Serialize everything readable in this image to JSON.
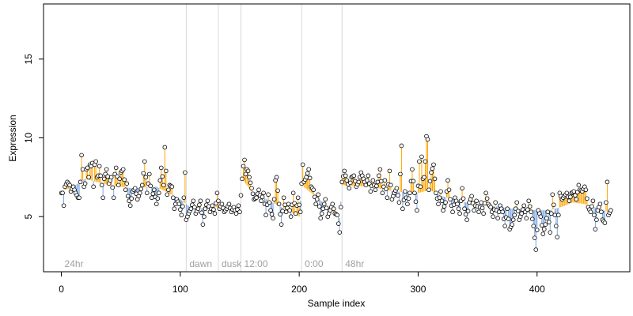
{
  "chart_data": {
    "type": "scatter",
    "style": "lollipop-from-smoothed-trend",
    "xlabel": "Sample index",
    "ylabel": "Expression",
    "xlim": [
      -15,
      478
    ],
    "ylim": [
      1.5,
      18.5
    ],
    "x_ticks": [
      0,
      100,
      200,
      300,
      400
    ],
    "y_ticks": [
      5,
      10,
      15
    ],
    "grid": false,
    "colors": {
      "above_trend": "#ffa500",
      "below_trend": "#7aa5e0",
      "point_fill": "#ffffff",
      "point_stroke": "#000000",
      "phase_line": "#d8d8d8",
      "phase_label": "#a0a0a0"
    },
    "phase_markers": [
      {
        "label": "24hr",
        "x": 0,
        "line": false
      },
      {
        "label": "dawn",
        "x": 105,
        "line": true
      },
      {
        "label": "dusk",
        "x": 132,
        "line": true
      },
      {
        "label": "12:00",
        "x": 151,
        "line": true
      },
      {
        "label": "0:00",
        "x": 202,
        "line": true
      },
      {
        "label": "48hr",
        "x": 236,
        "line": true
      }
    ],
    "trend_knots": [
      [
        0,
        6.6
      ],
      [
        10,
        6.9
      ],
      [
        20,
        7.4
      ],
      [
        40,
        7.0
      ],
      [
        60,
        6.8
      ],
      [
        80,
        6.9
      ],
      [
        100,
        6.1
      ],
      [
        110,
        5.5
      ],
      [
        130,
        5.6
      ],
      [
        150,
        5.4
      ],
      [
        152,
        7.4
      ],
      [
        160,
        6.6
      ],
      [
        180,
        5.8
      ],
      [
        200,
        5.0
      ],
      [
        202,
        7.0
      ],
      [
        220,
        5.9
      ],
      [
        234,
        4.9
      ],
      [
        236,
        7.0
      ],
      [
        260,
        6.9
      ],
      [
        280,
        6.6
      ],
      [
        300,
        6.5
      ],
      [
        310,
        6.7
      ],
      [
        320,
        6.3
      ],
      [
        340,
        5.9
      ],
      [
        360,
        5.7
      ],
      [
        380,
        5.5
      ],
      [
        400,
        5.4
      ],
      [
        410,
        5.4
      ],
      [
        420,
        5.6
      ],
      [
        430,
        5.9
      ],
      [
        440,
        5.8
      ],
      [
        452,
        5.5
      ],
      [
        460,
        5.3
      ]
    ],
    "anchors": [
      [
        0,
        6.5
      ],
      [
        1,
        6.5
      ],
      [
        2,
        5.7
      ],
      [
        3,
        6.9
      ],
      [
        5,
        7.2
      ],
      [
        7,
        7.0
      ],
      [
        8,
        6.6
      ],
      [
        10,
        6.9
      ],
      [
        12,
        6.5
      ],
      [
        14,
        6.2
      ],
      [
        15,
        6.2
      ],
      [
        16,
        7.2
      ],
      [
        17,
        8.9
      ],
      [
        18,
        8.0
      ],
      [
        19,
        6.9
      ],
      [
        20,
        7.1
      ],
      [
        21,
        8.0
      ],
      [
        22,
        8.1
      ],
      [
        23,
        7.5
      ],
      [
        24,
        8.3
      ],
      [
        25,
        8.2
      ],
      [
        26,
        8.4
      ],
      [
        27,
        6.9
      ],
      [
        28,
        8.3
      ],
      [
        29,
        8.5
      ],
      [
        30,
        7.5
      ],
      [
        31,
        7.6
      ],
      [
        32,
        8.2
      ],
      [
        34,
        7.0
      ],
      [
        35,
        6.2
      ],
      [
        36,
        7.4
      ],
      [
        38,
        8.0
      ],
      [
        40,
        7.1
      ],
      [
        42,
        7.5
      ],
      [
        44,
        6.2
      ],
      [
        45,
        7.7
      ],
      [
        46,
        8.1
      ],
      [
        48,
        7.0
      ],
      [
        50,
        7.8
      ],
      [
        52,
        8.0
      ],
      [
        54,
        6.7
      ],
      [
        55,
        7.1
      ],
      [
        56,
        6.3
      ],
      [
        58,
        5.7
      ],
      [
        60,
        6.6
      ],
      [
        62,
        6.8
      ],
      [
        64,
        6.1
      ],
      [
        66,
        6.5
      ],
      [
        68,
        7.0
      ],
      [
        70,
        8.5
      ],
      [
        72,
        6.5
      ],
      [
        74,
        7.7
      ],
      [
        76,
        6.2
      ],
      [
        78,
        6.7
      ],
      [
        80,
        5.8
      ],
      [
        82,
        6.5
      ],
      [
        84,
        8.1
      ],
      [
        86,
        7.0
      ],
      [
        87,
        9.4
      ],
      [
        89,
        6.4
      ],
      [
        91,
        7.0
      ],
      [
        93,
        6.9
      ],
      [
        95,
        5.5
      ],
      [
        97,
        6.1
      ],
      [
        99,
        5.8
      ],
      [
        101,
        5.1
      ],
      [
        103,
        6.2
      ],
      [
        104,
        7.8
      ],
      [
        105,
        4.8
      ],
      [
        107,
        5.2
      ],
      [
        109,
        5.5
      ],
      [
        111,
        6.0
      ],
      [
        113,
        5.2
      ],
      [
        115,
        5.5
      ],
      [
        117,
        6.0
      ],
      [
        119,
        4.5
      ],
      [
        121,
        5.5
      ],
      [
        123,
        6.0
      ],
      [
        125,
        5.3
      ],
      [
        127,
        5.7
      ],
      [
        129,
        5.2
      ],
      [
        131,
        6.5
      ],
      [
        133,
        5.5
      ],
      [
        135,
        5.8
      ],
      [
        137,
        5.3
      ],
      [
        139,
        5.5
      ],
      [
        141,
        5.8
      ],
      [
        143,
        5.3
      ],
      [
        145,
        5.6
      ],
      [
        147,
        5.2
      ],
      [
        149,
        5.7
      ],
      [
        150,
        5.3
      ],
      [
        152,
        7.4
      ],
      [
        153,
        8.2
      ],
      [
        154,
        8.6
      ],
      [
        155,
        7.7
      ],
      [
        156,
        8.0
      ],
      [
        157,
        7.9
      ],
      [
        158,
        7.5
      ],
      [
        160,
        6.8
      ],
      [
        162,
        6.1
      ],
      [
        164,
        6.2
      ],
      [
        166,
        6.7
      ],
      [
        168,
        6.0
      ],
      [
        170,
        6.5
      ],
      [
        172,
        5.1
      ],
      [
        174,
        6.4
      ],
      [
        176,
        5.4
      ],
      [
        178,
        4.9
      ],
      [
        180,
        7.3
      ],
      [
        181,
        7.5
      ],
      [
        183,
        5.8
      ],
      [
        185,
        4.5
      ],
      [
        187,
        6.2
      ],
      [
        189,
        5.3
      ],
      [
        191,
        5.8
      ],
      [
        193,
        5.0
      ],
      [
        195,
        6.5
      ],
      [
        197,
        5.2
      ],
      [
        199,
        6.2
      ],
      [
        201,
        5.3
      ],
      [
        202,
        7.1
      ],
      [
        203,
        8.3
      ],
      [
        204,
        7.2
      ],
      [
        206,
        7.5
      ],
      [
        208,
        8.0
      ],
      [
        210,
        6.9
      ],
      [
        212,
        6.7
      ],
      [
        214,
        5.8
      ],
      [
        216,
        6.4
      ],
      [
        218,
        4.9
      ],
      [
        220,
        5.5
      ],
      [
        222,
        6.1
      ],
      [
        224,
        5.0
      ],
      [
        226,
        5.4
      ],
      [
        228,
        5.8
      ],
      [
        230,
        5.2
      ],
      [
        232,
        5.1
      ],
      [
        234,
        4.0
      ],
      [
        236,
        7.2
      ],
      [
        238,
        7.9
      ],
      [
        240,
        7.3
      ],
      [
        242,
        6.8
      ],
      [
        244,
        7.5
      ],
      [
        246,
        7.6
      ],
      [
        248,
        6.9
      ],
      [
        250,
        7.2
      ],
      [
        252,
        7.8
      ],
      [
        254,
        7.4
      ],
      [
        256,
        7.0
      ],
      [
        258,
        7.6
      ],
      [
        260,
        6.6
      ],
      [
        262,
        7.3
      ],
      [
        264,
        6.7
      ],
      [
        266,
        7.2
      ],
      [
        268,
        8.0
      ],
      [
        270,
        6.5
      ],
      [
        272,
        7.3
      ],
      [
        274,
        6.2
      ],
      [
        276,
        7.9
      ],
      [
        278,
        6.1
      ],
      [
        280,
        6.5
      ],
      [
        282,
        6.8
      ],
      [
        284,
        5.9
      ],
      [
        286,
        9.5
      ],
      [
        287,
        5.5
      ],
      [
        289,
        6.6
      ],
      [
        291,
        5.8
      ],
      [
        293,
        6.5
      ],
      [
        295,
        8.0
      ],
      [
        297,
        6.5
      ],
      [
        299,
        5.4
      ],
      [
        301,
        8.5
      ],
      [
        302,
        6.9
      ],
      [
        303,
        8.8
      ],
      [
        304,
        7.4
      ],
      [
        305,
        7.5
      ],
      [
        306,
        8.5
      ],
      [
        307,
        10.1
      ],
      [
        308,
        9.9
      ],
      [
        309,
        6.7
      ],
      [
        311,
        7.8
      ],
      [
        313,
        8.3
      ],
      [
        315,
        6.5
      ],
      [
        317,
        5.8
      ],
      [
        319,
        6.6
      ],
      [
        321,
        5.4
      ],
      [
        323,
        5.9
      ],
      [
        325,
        7.3
      ],
      [
        327,
        6.1
      ],
      [
        329,
        5.3
      ],
      [
        331,
        6.2
      ],
      [
        333,
        5.8
      ],
      [
        335,
        5.2
      ],
      [
        337,
        6.8
      ],
      [
        339,
        5.5
      ],
      [
        341,
        4.8
      ],
      [
        343,
        5.9
      ],
      [
        345,
        6.3
      ],
      [
        347,
        5.4
      ],
      [
        349,
        6.0
      ],
      [
        351,
        5.3
      ],
      [
        353,
        5.9
      ],
      [
        355,
        5.2
      ],
      [
        357,
        6.5
      ],
      [
        359,
        5.8
      ],
      [
        361,
        5.6
      ],
      [
        363,
        5.0
      ],
      [
        365,
        5.9
      ],
      [
        367,
        4.9
      ],
      [
        369,
        5.7
      ],
      [
        371,
        5.3
      ],
      [
        373,
        4.4
      ],
      [
        375,
        5.5
      ],
      [
        377,
        4.2
      ],
      [
        379,
        4.5
      ],
      [
        381,
        5.1
      ],
      [
        383,
        5.9
      ],
      [
        385,
        4.8
      ],
      [
        387,
        5.2
      ],
      [
        389,
        5.7
      ],
      [
        391,
        4.9
      ],
      [
        393,
        6.0
      ],
      [
        395,
        5.3
      ],
      [
        397,
        4.4
      ],
      [
        399,
        2.9
      ],
      [
        401,
        5.4
      ],
      [
        403,
        5.0
      ],
      [
        405,
        3.9
      ],
      [
        407,
        4.5
      ],
      [
        409,
        5.3
      ],
      [
        411,
        4.0
      ],
      [
        413,
        6.4
      ],
      [
        415,
        5.1
      ],
      [
        417,
        3.7
      ],
      [
        419,
        6.5
      ],
      [
        421,
        6.1
      ],
      [
        423,
        6.3
      ],
      [
        425,
        6.5
      ],
      [
        427,
        6.0
      ],
      [
        429,
        6.5
      ],
      [
        431,
        6.6
      ],
      [
        433,
        6.1
      ],
      [
        435,
        7.0
      ],
      [
        436,
        6.7
      ],
      [
        438,
        6.6
      ],
      [
        440,
        6.9
      ],
      [
        441,
        6.7
      ],
      [
        443,
        5.6
      ],
      [
        445,
        5.3
      ],
      [
        447,
        6.0
      ],
      [
        449,
        4.2
      ],
      [
        451,
        5.4
      ],
      [
        453,
        5.8
      ],
      [
        455,
        4.8
      ],
      [
        457,
        4.6
      ],
      [
        459,
        7.2
      ],
      [
        460,
        5.1
      ],
      [
        462,
        5.4
      ]
    ]
  }
}
